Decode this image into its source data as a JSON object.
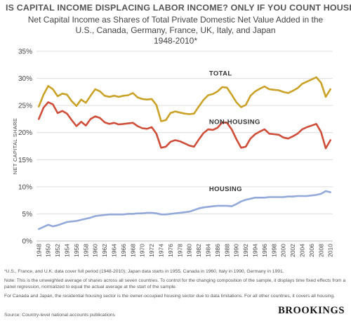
{
  "header": {
    "headline": "IS CAPITAL INCOME DISPLACING LABOR INCOME? ONLY IF YOU COUNT HOUSING"
  },
  "chart_data": {
    "type": "line",
    "title": "Net Capital Income as Shares of Total Private Domestic Net Value Added in the",
    "subtitle": "U.S., Canada, Germany, France, UK, Italy, and Japan",
    "subtitle2": "1948-2010*",
    "xlabel": "",
    "ylabel": "NET CAPITAL SHARE",
    "xlim": [
      1947.5,
      2010.5
    ],
    "ylim": [
      0,
      35
    ],
    "yticks": [
      "0%",
      "5%",
      "10%",
      "15%",
      "20%",
      "25%",
      "30%",
      "35%"
    ],
    "xticks": [
      "1948",
      "1950",
      "1952",
      "1954",
      "1956",
      "1958",
      "1960",
      "1962",
      "1964",
      "1966",
      "1968",
      "1970",
      "1972",
      "1974",
      "1976",
      "1978",
      "1980",
      "1982",
      "1984",
      "1986",
      "1988",
      "1990",
      "1992",
      "1994",
      "1996",
      "1998",
      "2000",
      "2002",
      "2004",
      "2006",
      "2008",
      "2010"
    ],
    "grid": true,
    "x": [
      1948,
      1949,
      1950,
      1951,
      1952,
      1953,
      1954,
      1955,
      1956,
      1957,
      1958,
      1959,
      1960,
      1961,
      1962,
      1963,
      1964,
      1965,
      1966,
      1967,
      1968,
      1969,
      1970,
      1971,
      1972,
      1973,
      1974,
      1975,
      1976,
      1977,
      1978,
      1979,
      1980,
      1981,
      1982,
      1983,
      1984,
      1985,
      1986,
      1987,
      1988,
      1989,
      1990,
      1991,
      1992,
      1993,
      1994,
      1995,
      1996,
      1997,
      1998,
      1999,
      2000,
      2001,
      2002,
      2003,
      2004,
      2005,
      2006,
      2007,
      2008,
      2009,
      2010
    ],
    "series": [
      {
        "name": "TOTAL",
        "color": "#c9a227",
        "values": [
          24.8,
          27.0,
          28.6,
          28.0,
          26.7,
          27.2,
          27.0,
          25.8,
          24.9,
          26.1,
          25.5,
          26.8,
          28.0,
          27.6,
          26.8,
          26.6,
          26.8,
          26.6,
          26.8,
          26.9,
          27.3,
          26.5,
          26.2,
          26.1,
          26.2,
          25.1,
          22.1,
          22.3,
          23.6,
          23.9,
          23.7,
          23.5,
          23.4,
          23.5,
          24.8,
          26.0,
          26.9,
          27.1,
          27.6,
          28.4,
          28.3,
          27.0,
          25.6,
          24.7,
          25.1,
          26.8,
          27.6,
          28.1,
          28.5,
          28.0,
          27.9,
          27.8,
          27.5,
          27.3,
          27.7,
          28.2,
          29.0,
          29.4,
          29.8,
          30.2,
          29.2,
          26.6,
          28.0
        ]
      },
      {
        "name": "NON-HOUSING",
        "color": "#cf4e3a",
        "values": [
          22.5,
          24.6,
          25.6,
          25.2,
          23.6,
          24.0,
          23.5,
          22.3,
          21.2,
          22.0,
          21.3,
          22.5,
          23.0,
          22.7,
          21.9,
          21.6,
          21.8,
          21.5,
          21.6,
          21.7,
          21.8,
          21.2,
          20.8,
          20.7,
          21.0,
          19.8,
          17.2,
          17.4,
          18.3,
          18.6,
          18.4,
          18.0,
          17.6,
          17.4,
          18.7,
          19.9,
          20.6,
          20.5,
          20.9,
          21.9,
          21.8,
          20.6,
          18.8,
          17.2,
          17.4,
          18.9,
          19.7,
          20.2,
          20.6,
          19.8,
          19.7,
          19.6,
          19.1,
          18.9,
          19.3,
          19.8,
          20.6,
          21.0,
          21.3,
          21.6,
          20.1,
          17.1,
          18.6
        ]
      },
      {
        "name": "HOUSING",
        "color": "#93a9da",
        "values": [
          2.2,
          2.6,
          3.0,
          2.7,
          2.9,
          3.2,
          3.5,
          3.6,
          3.7,
          3.9,
          4.1,
          4.3,
          4.6,
          4.7,
          4.8,
          4.9,
          4.9,
          4.9,
          4.9,
          5.0,
          5.0,
          5.1,
          5.1,
          5.2,
          5.2,
          5.1,
          4.9,
          4.9,
          5.0,
          5.1,
          5.2,
          5.3,
          5.4,
          5.7,
          6.0,
          6.2,
          6.3,
          6.4,
          6.5,
          6.5,
          6.5,
          6.4,
          6.8,
          7.3,
          7.6,
          7.8,
          8.0,
          8.0,
          8.0,
          8.1,
          8.1,
          8.1,
          8.1,
          8.2,
          8.2,
          8.3,
          8.3,
          8.3,
          8.4,
          8.5,
          8.7,
          9.2,
          9.0
        ]
      }
    ]
  },
  "notes": [
    "*U.S., France, and U.K. data cover full period (1948-2010); Japan data starts in 1955, Canada in 1960, Italy in 1990, Germany in 1991.",
    "Note: This is the unweighted average of shares across all seven countries. To control for the changing composition of the sample, it displays time fixed effects from a panel regression, normalized to equal the actual average at the start of the sample.",
    "For Canada and Japan, the residential housing sector is the owner-occupied housing sector due to data limitations. For all other countries, it covers all housing."
  ],
  "source": "Source: Country-level national accounts publications",
  "brand": "BROOKINGS"
}
